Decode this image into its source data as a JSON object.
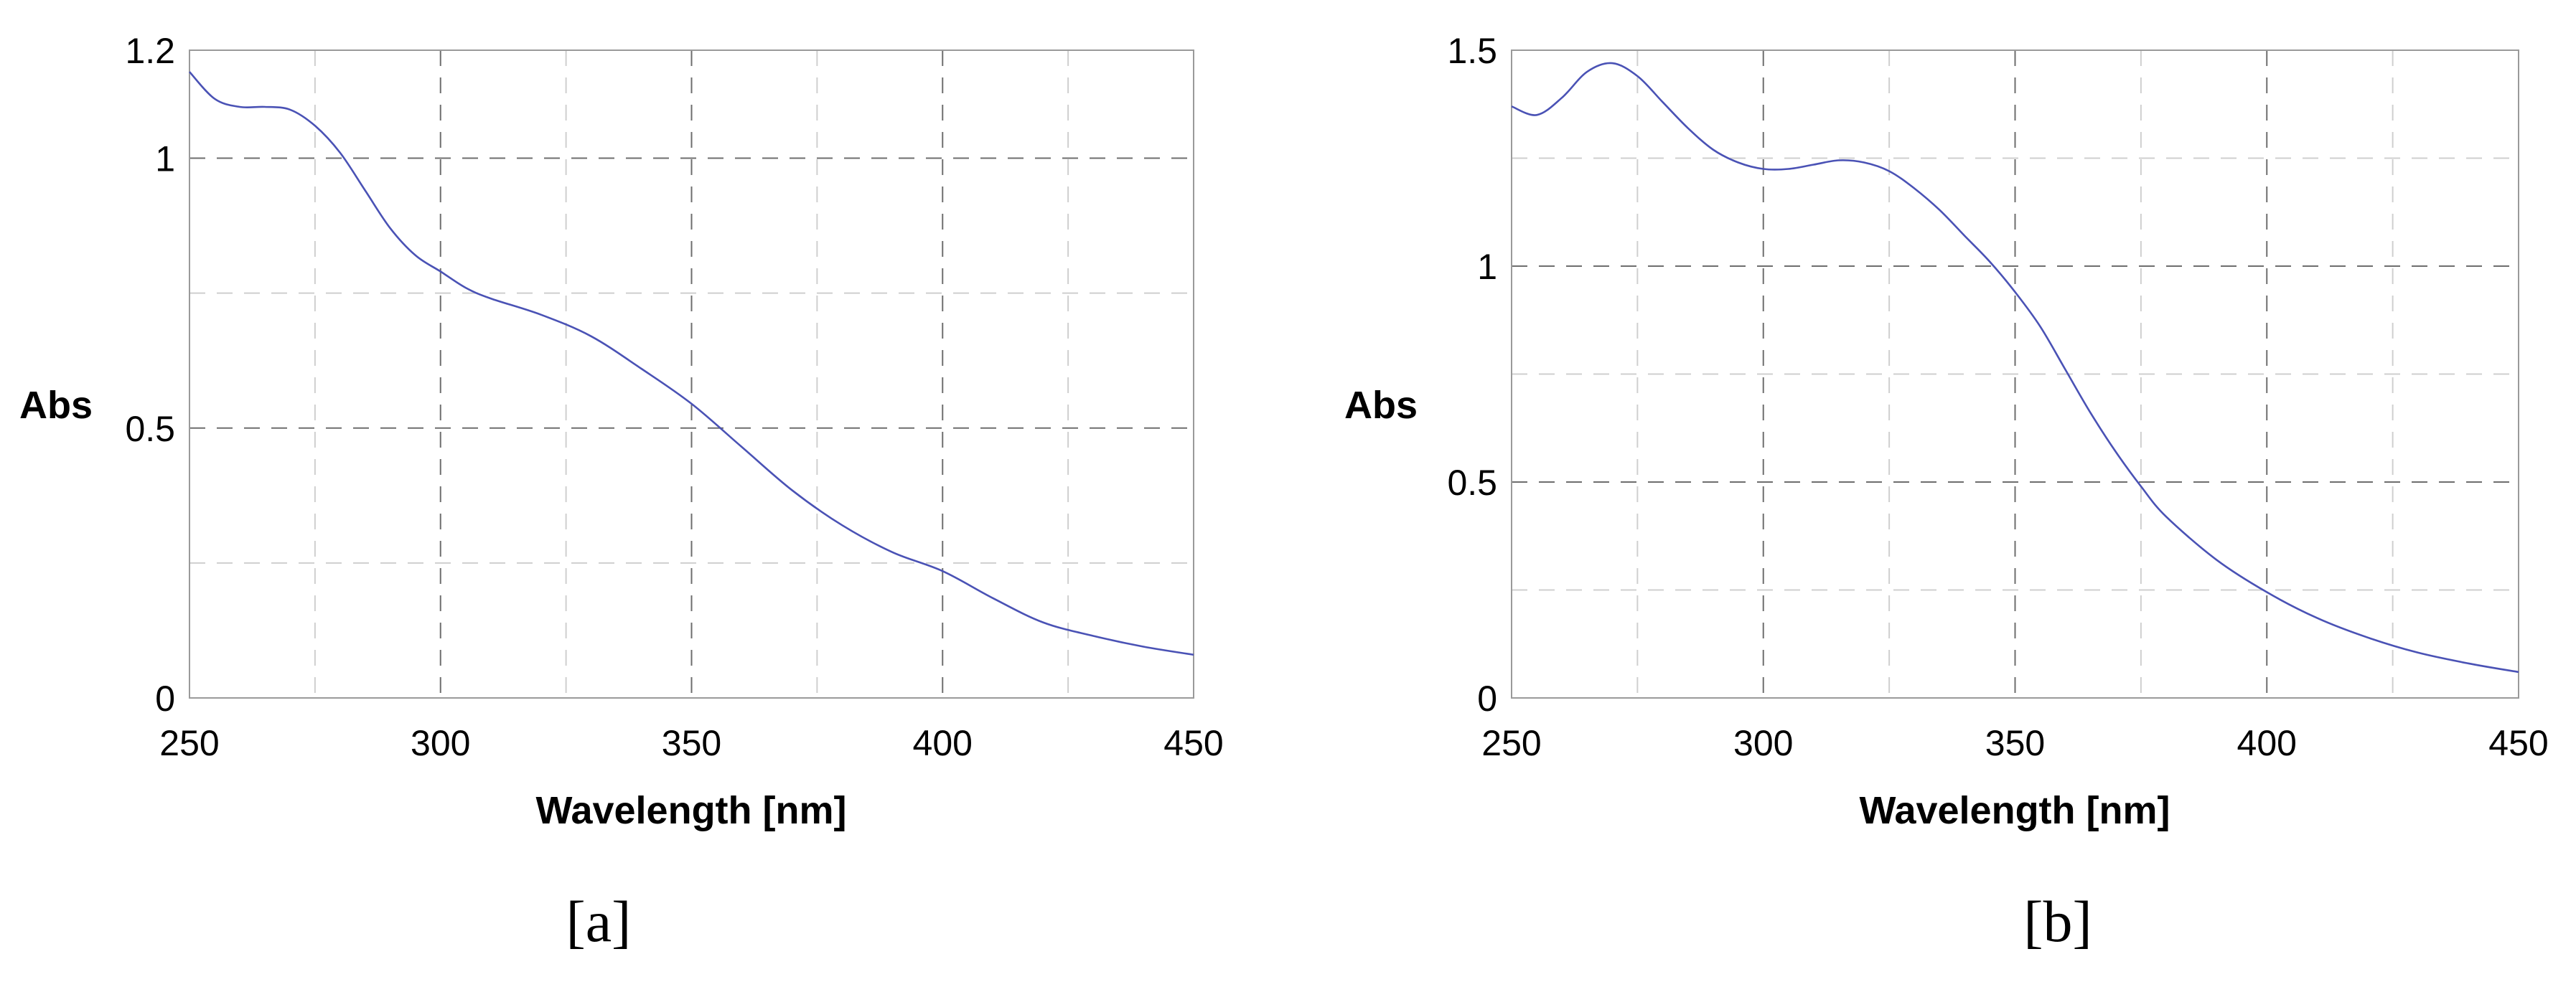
{
  "chart_data": [
    {
      "type": "line",
      "panel_label": "[a]",
      "xlabel": "Wavelength [nm]",
      "ylabel": "Abs",
      "xlim": [
        250,
        450
      ],
      "ylim": [
        0,
        1.2
      ],
      "x_ticks": [
        250,
        300,
        350,
        400,
        450
      ],
      "x_tick_labels": [
        "250",
        "300",
        "350",
        "400",
        "450"
      ],
      "x_minor_ticks": [
        275,
        325,
        375,
        425
      ],
      "y_ticks": [
        0,
        0.5,
        1,
        1.2
      ],
      "y_tick_labels": [
        "0",
        "0.5",
        "1",
        "1.2"
      ],
      "y_minor_ticks": [
        0.25,
        0.75
      ],
      "grid": true,
      "line_color": "#4a52b5",
      "series": [
        {
          "x": [
            250,
            255,
            260,
            265,
            270,
            275,
            280,
            285,
            290,
            295,
            300,
            305,
            310,
            320,
            330,
            340,
            350,
            360,
            370,
            380,
            390,
            400,
            410,
            420,
            430,
            440,
            450
          ],
          "y": [
            1.16,
            1.11,
            1.095,
            1.095,
            1.09,
            1.06,
            1.01,
            0.94,
            0.87,
            0.82,
            0.79,
            0.76,
            0.74,
            0.71,
            0.67,
            0.61,
            0.545,
            0.465,
            0.385,
            0.32,
            0.27,
            0.235,
            0.185,
            0.14,
            0.115,
            0.095,
            0.08
          ]
        }
      ]
    },
    {
      "type": "line",
      "panel_label": "[b]",
      "xlabel": "Wavelength [nm]",
      "ylabel": "Abs",
      "xlim": [
        250,
        450
      ],
      "ylim": [
        0,
        1.5
      ],
      "x_ticks": [
        250,
        300,
        350,
        400,
        450
      ],
      "x_tick_labels": [
        "250",
        "300",
        "350",
        "400",
        "450"
      ],
      "x_minor_ticks": [
        275,
        325,
        375,
        425
      ],
      "y_ticks": [
        0,
        0.5,
        1,
        1.5
      ],
      "y_tick_labels": [
        "0",
        "0.5",
        "1",
        "1.5"
      ],
      "y_minor_ticks": [
        0.25,
        0.75,
        1.25
      ],
      "grid": true,
      "line_color": "#4a52b5",
      "series": [
        {
          "x": [
            250,
            255,
            260,
            265,
            270,
            275,
            280,
            285,
            290,
            295,
            300,
            305,
            310,
            315,
            320,
            325,
            330,
            335,
            340,
            345,
            350,
            355,
            360,
            365,
            370,
            375,
            380,
            390,
            400,
            410,
            420,
            430,
            440,
            450
          ],
          "y": [
            1.37,
            1.35,
            1.39,
            1.45,
            1.47,
            1.44,
            1.38,
            1.32,
            1.27,
            1.24,
            1.225,
            1.225,
            1.235,
            1.245,
            1.24,
            1.22,
            1.18,
            1.13,
            1.07,
            1.01,
            0.94,
            0.86,
            0.76,
            0.66,
            0.57,
            0.49,
            0.42,
            0.32,
            0.245,
            0.185,
            0.14,
            0.105,
            0.08,
            0.06
          ]
        }
      ]
    }
  ]
}
